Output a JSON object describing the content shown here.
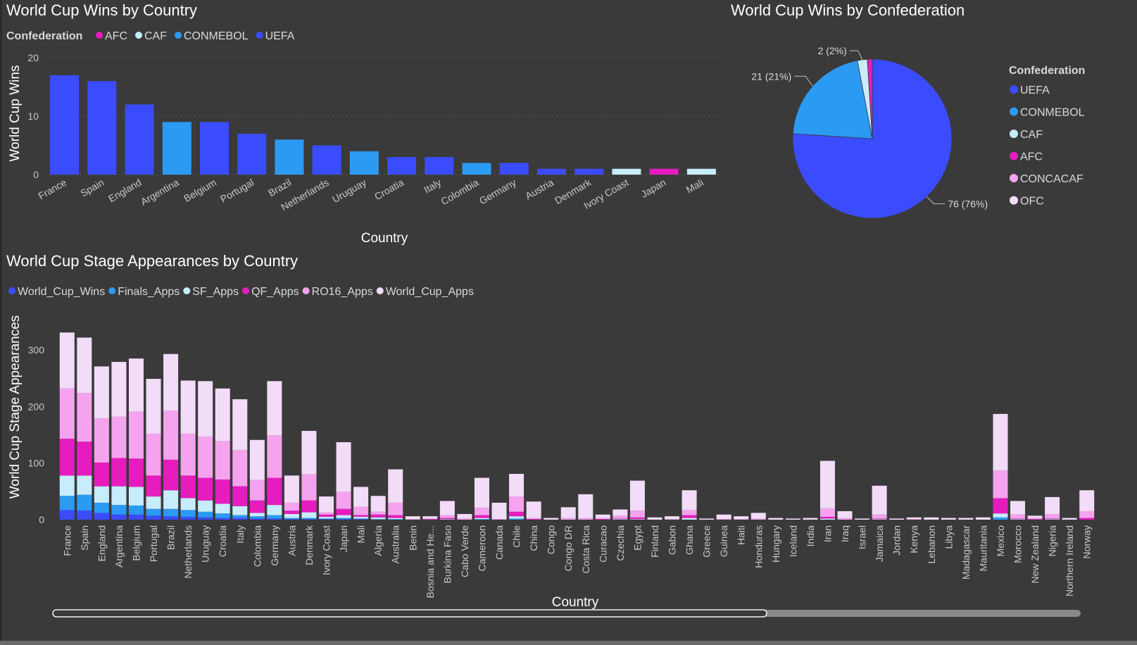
{
  "chart_data": [
    {
      "type": "bar",
      "title": "World Cup Wins by Country",
      "xlabel": "Country",
      "ylabel": "World Cup Wins",
      "ylim": [
        0,
        20
      ],
      "yticks": [
        0,
        10,
        20
      ],
      "grid": true,
      "legend_title": "Confederation",
      "legend_position": "top-left",
      "legend": [
        {
          "name": "AFC",
          "color": "#e61cbf"
        },
        {
          "name": "CAF",
          "color": "#c7ecfb"
        },
        {
          "name": "CONMEBOL",
          "color": "#2b9af3"
        },
        {
          "name": "UEFA",
          "color": "#3b4cff"
        }
      ],
      "categories": [
        "France",
        "Spain",
        "England",
        "Argentina",
        "Belgium",
        "Portugal",
        "Brazil",
        "Netherlands",
        "Uruguay",
        "Croatia",
        "Italy",
        "Colombia",
        "Germany",
        "Austria",
        "Denmark",
        "Ivory Coast",
        "Japan",
        "Mali"
      ],
      "values": [
        17,
        16,
        12,
        9,
        9,
        7,
        6,
        5,
        4,
        3,
        3,
        2,
        2,
        1,
        1,
        1,
        1,
        1
      ],
      "confederations": [
        "UEFA",
        "UEFA",
        "UEFA",
        "CONMEBOL",
        "UEFA",
        "UEFA",
        "CONMEBOL",
        "UEFA",
        "CONMEBOL",
        "UEFA",
        "UEFA",
        "CONMEBOL",
        "UEFA",
        "UEFA",
        "UEFA",
        "CAF",
        "AFC",
        "CAF"
      ]
    },
    {
      "type": "pie",
      "title": "World Cup Wins by Confederation",
      "legend_title": "Confederation",
      "legend_position": "right",
      "legend": [
        {
          "name": "UEFA",
          "color": "#3b4cff"
        },
        {
          "name": "CONMEBOL",
          "color": "#2b9af3"
        },
        {
          "name": "CAF",
          "color": "#c7ecfb"
        },
        {
          "name": "AFC",
          "color": "#e61cbf"
        },
        {
          "name": "CONCACAF",
          "color": "#f5a3ee"
        },
        {
          "name": "OFC",
          "color": "#f2dcf7"
        }
      ],
      "slices": [
        {
          "name": "UEFA",
          "value": 76,
          "label": "76 (76%)"
        },
        {
          "name": "CONMEBOL",
          "value": 21,
          "label": "21 (21%)"
        },
        {
          "name": "CAF",
          "value": 2,
          "label": "2 (2%)"
        },
        {
          "name": "AFC",
          "value": 1,
          "label": ""
        }
      ]
    },
    {
      "type": "bar",
      "stacked": true,
      "title": "World Cup Stage Appearances by Country",
      "xlabel": "Country",
      "ylabel": "World Cup Stage Appearances",
      "ylim": [
        0,
        340
      ],
      "yticks": [
        0,
        100,
        200,
        300
      ],
      "grid": false,
      "legend_position": "top-left",
      "categories": [
        "France",
        "Spain",
        "England",
        "Argentina",
        "Belgium",
        "Portugal",
        "Brazil",
        "Netherlands",
        "Uruguay",
        "Croatia",
        "Italy",
        "Colombia",
        "Germany",
        "Austria",
        "Denmark",
        "Ivory Coast",
        "Japan",
        "Mali",
        "Algeria",
        "Australia",
        "Benin",
        "Bosnia and He...",
        "Burkina Faso",
        "Cabo Verde",
        "Cameroon",
        "Canada",
        "Chile",
        "China",
        "Congo",
        "Congo DR",
        "Costa Rica",
        "Curacao",
        "Czechia",
        "Egypt",
        "Finland",
        "Gabon",
        "Ghana",
        "Greece",
        "Guinea",
        "Haiti",
        "Honduras",
        "Hungary",
        "Iceland",
        "India",
        "Iran",
        "Iraq",
        "Israel",
        "Jamaica",
        "Jordan",
        "Kenya",
        "Lebanon",
        "Libya",
        "Madagascar",
        "Mauritania",
        "Mexico",
        "Morocco",
        "New Zealand",
        "Nigeria",
        "Northern Ireland",
        "Norway"
      ],
      "series": [
        {
          "name": "World_Cup_Wins",
          "color": "#3b4cff",
          "values": [
            17,
            16,
            12,
            9,
            9,
            7,
            6,
            5,
            4,
            3,
            3,
            2,
            2,
            1,
            1,
            1,
            1,
            1,
            0,
            0,
            0,
            0,
            0,
            0,
            0,
            0,
            0,
            0,
            0,
            0,
            0,
            0,
            0,
            0,
            0,
            0,
            0,
            0,
            0,
            0,
            0,
            0,
            0,
            0,
            0,
            0,
            0,
            0,
            0,
            0,
            0,
            0,
            0,
            0,
            0,
            0,
            0,
            0,
            0,
            0
          ]
        },
        {
          "name": "Finals_Apps",
          "color": "#2b9af3",
          "values": [
            25,
            28,
            18,
            17,
            16,
            12,
            13,
            12,
            10,
            8,
            5,
            4,
            6,
            2,
            2,
            1,
            2,
            1,
            1,
            1,
            0,
            0,
            0,
            0,
            1,
            0,
            2,
            0,
            0,
            0,
            0,
            0,
            0,
            0,
            0,
            0,
            0,
            0,
            0,
            0,
            0,
            0,
            0,
            0,
            0,
            0,
            0,
            0,
            0,
            0,
            0,
            0,
            0,
            0,
            4,
            0,
            0,
            0,
            0,
            0
          ]
        },
        {
          "name": "SF_Apps",
          "color": "#c7ecfb",
          "values": [
            36,
            34,
            29,
            33,
            33,
            22,
            33,
            21,
            20,
            17,
            16,
            6,
            18,
            7,
            10,
            3,
            5,
            3,
            3,
            2,
            0,
            0,
            1,
            0,
            2,
            0,
            4,
            0,
            0,
            0,
            0,
            0,
            1,
            1,
            0,
            0,
            3,
            0,
            0,
            0,
            0,
            0,
            0,
            0,
            2,
            0,
            0,
            1,
            0,
            0,
            0,
            0,
            0,
            0,
            7,
            1,
            0,
            1,
            0,
            0
          ]
        },
        {
          "name": "QF_Apps",
          "color": "#e61cbf",
          "values": [
            65,
            60,
            42,
            50,
            50,
            37,
            54,
            40,
            40,
            43,
            35,
            22,
            48,
            6,
            21,
            4,
            11,
            3,
            5,
            5,
            0,
            1,
            2,
            0,
            5,
            0,
            8,
            1,
            0,
            0,
            0,
            1,
            1,
            3,
            0,
            0,
            5,
            0,
            0,
            0,
            0,
            0,
            0,
            0,
            3,
            0,
            0,
            1,
            0,
            0,
            0,
            0,
            0,
            0,
            27,
            1,
            1,
            1,
            0,
            3
          ]
        },
        {
          "name": "RO16_Apps",
          "color": "#f5a3ee",
          "values": [
            89,
            86,
            78,
            73,
            83,
            74,
            87,
            74,
            73,
            68,
            64,
            36,
            75,
            14,
            46,
            4,
            30,
            15,
            5,
            22,
            1,
            1,
            5,
            2,
            13,
            1,
            27,
            2,
            0,
            3,
            3,
            2,
            5,
            12,
            0,
            1,
            9,
            0,
            1,
            1,
            2,
            0,
            0,
            0,
            15,
            3,
            0,
            7,
            0,
            1,
            0,
            0,
            0,
            0,
            49,
            7,
            2,
            8,
            0,
            12
          ]
        },
        {
          "name": "World_Cup_Apps",
          "color": "#f2dcf7",
          "values": [
            99,
            98,
            92,
            97,
            94,
            97,
            100,
            94,
            98,
            93,
            90,
            71,
            96,
            48,
            77,
            28,
            88,
            35,
            28,
            59,
            5,
            4,
            25,
            8,
            53,
            29,
            40,
            29,
            3,
            19,
            42,
            6,
            11,
            53,
            4,
            5,
            35,
            2,
            8,
            5,
            10,
            3,
            2,
            3,
            84,
            12,
            2,
            51,
            2,
            3,
            4,
            3,
            3,
            4,
            100,
            24,
            4,
            30,
            3,
            37
          ]
        }
      ]
    }
  ]
}
